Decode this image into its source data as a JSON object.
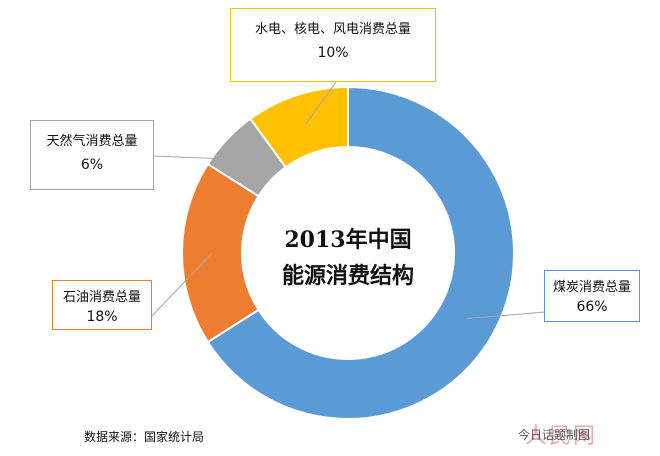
{
  "chart_data": {
    "type": "pie",
    "title": "2013年中国\n能源消费结构",
    "title_lines": [
      "2013年中国",
      "能源消费结构"
    ],
    "slices": [
      {
        "label": "煤炭消费总量",
        "value": 66,
        "value_label": "66%",
        "color": "#5b9bd5"
      },
      {
        "label": "石油消费总量",
        "value": 18,
        "value_label": "18%",
        "color": "#ed7d31"
      },
      {
        "label": "天然气消费总量",
        "value": 6,
        "value_label": "6%",
        "color": "#a5a5a5"
      },
      {
        "label": "水电、核电、风电消费总量",
        "value": 10,
        "value_label": "10%",
        "color": "#ffc000"
      }
    ]
  },
  "source": "数据来源：国家统计局",
  "watermark": {
    "text": "今日话题制图",
    "brand": "人民网"
  }
}
